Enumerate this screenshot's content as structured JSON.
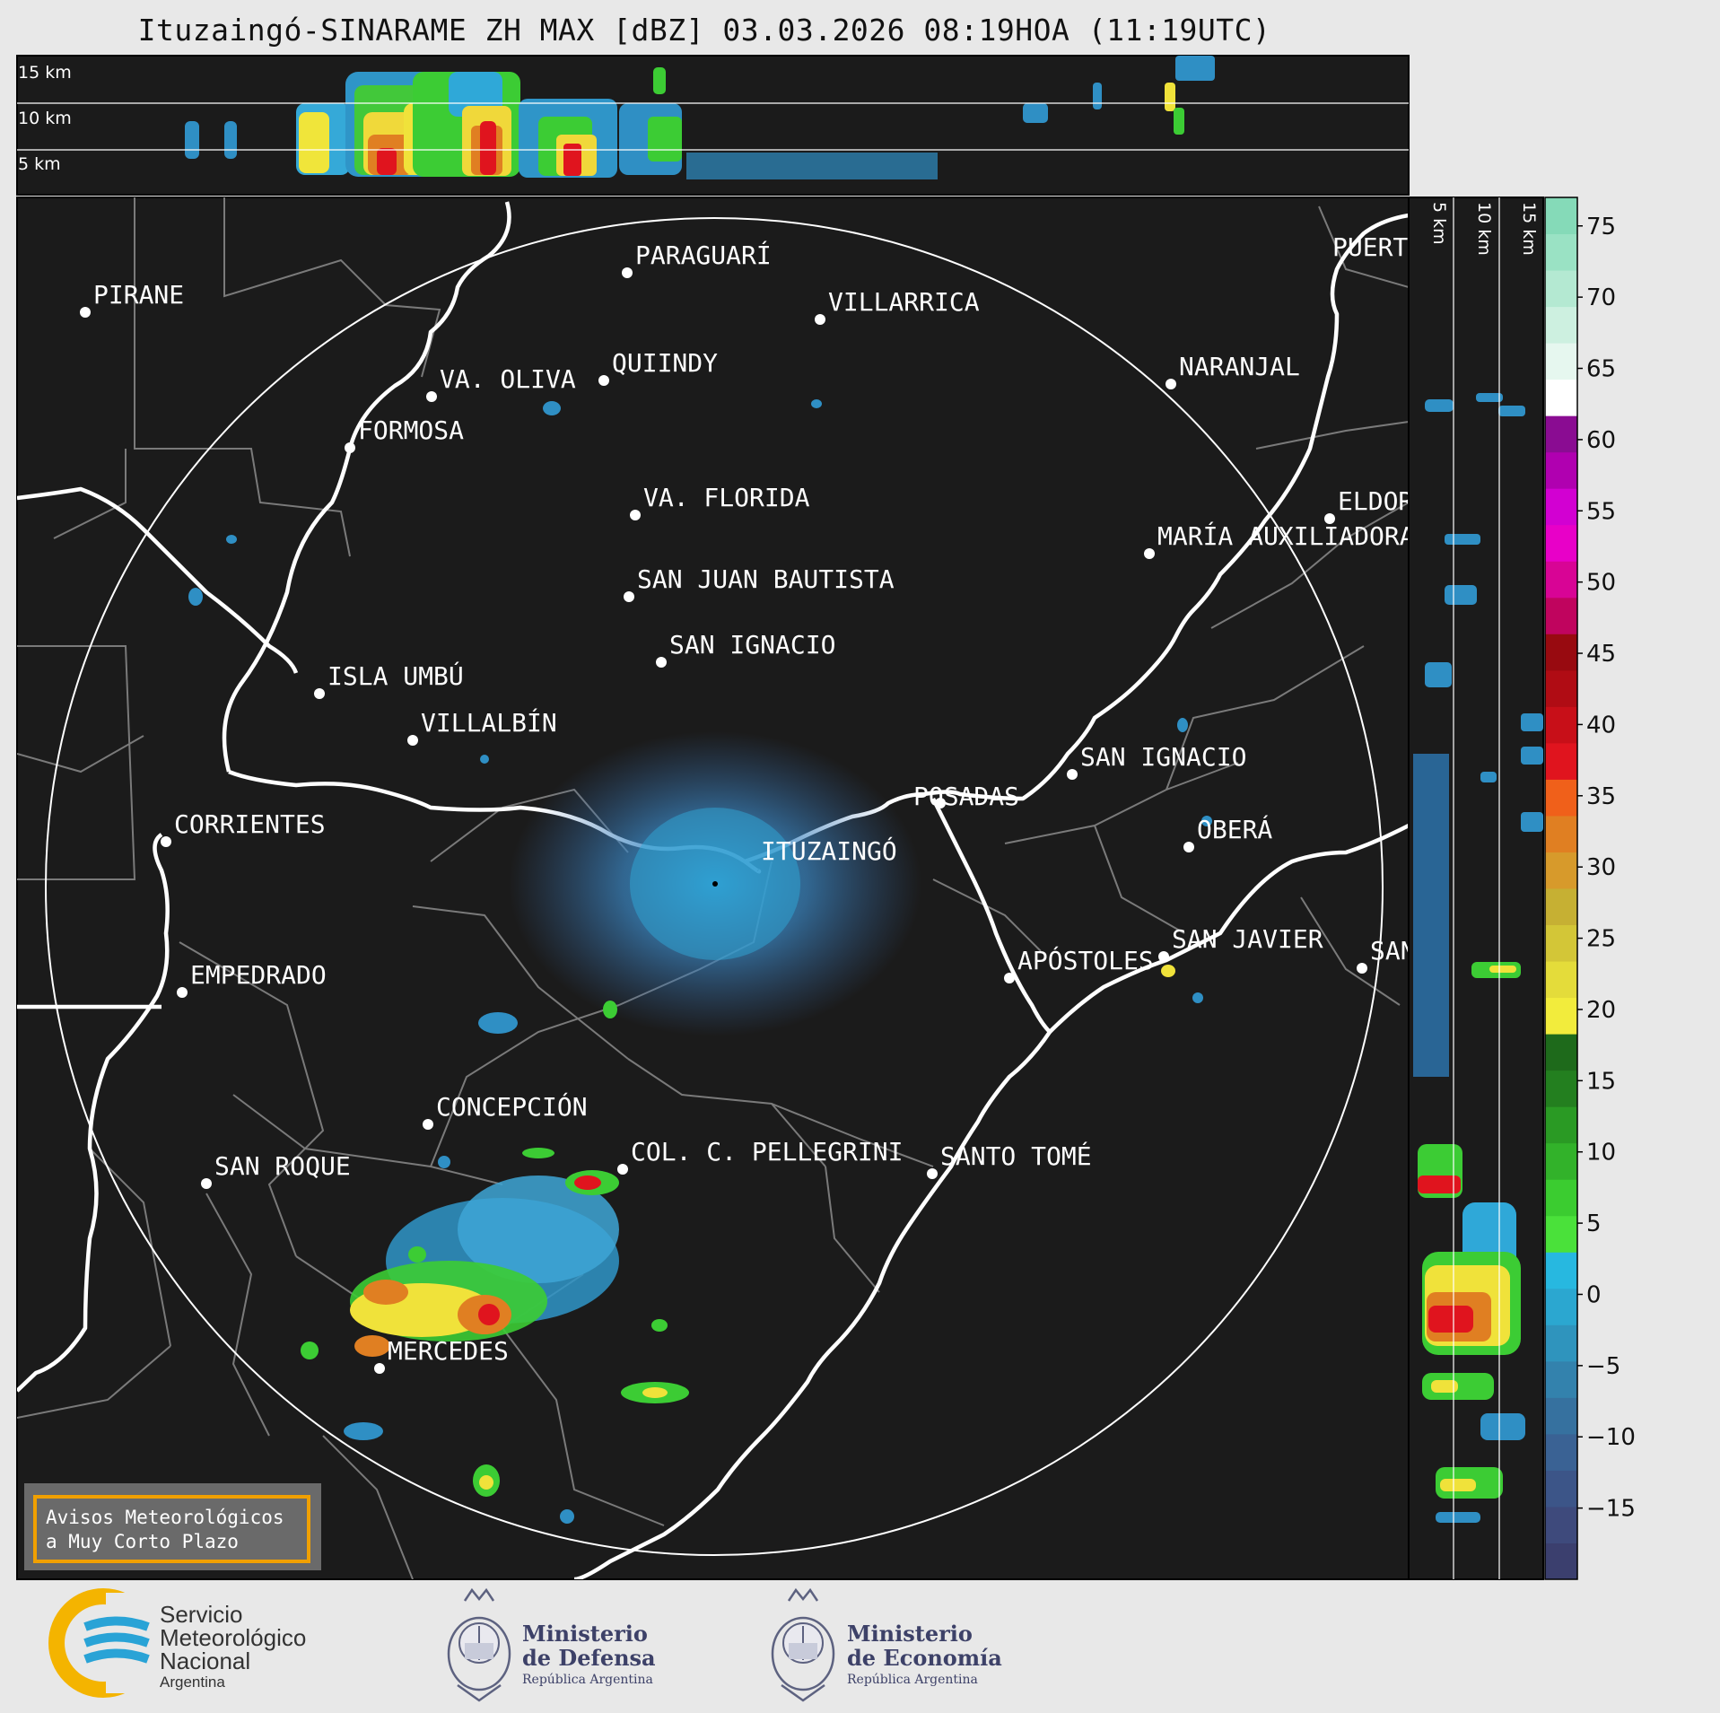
{
  "title": "Ituzaingó-SINARAME ZH MAX [dBZ] 03.03.2026 08:19HOA (11:19UTC)",
  "top_panel": {
    "height_labels": [
      "15 km",
      "10 km",
      "5 km"
    ]
  },
  "side_panel": {
    "height_labels": [
      "5 km",
      "10 km",
      "15 km"
    ]
  },
  "radar_site": "ITUZAINGÓ",
  "cities": [
    {
      "name": "PIRANE"
    },
    {
      "name": "PARAGUARÍ"
    },
    {
      "name": "VILLARRICA"
    },
    {
      "name": "VA. OLIVA"
    },
    {
      "name": "QUIINDY"
    },
    {
      "name": "NARANJAL"
    },
    {
      "name": "FORMOSA"
    },
    {
      "name": "VA. FLORIDA"
    },
    {
      "name": "ELDORADO"
    },
    {
      "name": "MARÍA AUXILIADORA"
    },
    {
      "name": "SAN JUAN BAUTISTA"
    },
    {
      "name": "SAN IGNACIO"
    },
    {
      "name": "ISLA UMBÚ"
    },
    {
      "name": "VILLALBÍN"
    },
    {
      "name": "SAN IGNACIO"
    },
    {
      "name": "POSADAS"
    },
    {
      "name": "CORRIENTES"
    },
    {
      "name": "OBERÁ"
    },
    {
      "name": "APÓSTOLES"
    },
    {
      "name": "SAN JAVIER"
    },
    {
      "name": "SAN"
    },
    {
      "name": "EMPEDRADO"
    },
    {
      "name": "CONCEPCIÓN"
    },
    {
      "name": "COL. C. PELLEGRINI"
    },
    {
      "name": "SANTO TOMÉ"
    },
    {
      "name": "SAN ROQUE"
    },
    {
      "name": "MERCEDES"
    },
    {
      "name": "PUERTO"
    }
  ],
  "colorbar": {
    "ticks": [
      "75",
      "70",
      "65",
      "60",
      "55",
      "50",
      "45",
      "40",
      "35",
      "30",
      "25",
      "20",
      "15",
      "10",
      "5",
      "0",
      "−5",
      "−10",
      "−15"
    ],
    "colors": [
      "#3b3f6e",
      "#3e4a7c",
      "#3c5588",
      "#3a6294",
      "#36719f",
      "#3382ad",
      "#2f94bd",
      "#2ba7d0",
      "#27b8e0",
      "#4ae13a",
      "#3bcc30",
      "#32b22a",
      "#2a9a24",
      "#237f1f",
      "#1e6a1b",
      "#f2ec3c",
      "#e4dc3a",
      "#d3c637",
      "#c6b033",
      "#d79a2b",
      "#e07f22",
      "#f0601a",
      "#e0141e",
      "#c80f18",
      "#b00c14",
      "#980a10",
      "#c0045e",
      "#d80495",
      "#e800c8",
      "#d200d2",
      "#b000b0",
      "#8a0c92",
      "#ffffff",
      "#e6f7ef",
      "#cdf0e0",
      "#b4e9d2",
      "#9ae2c4",
      "#85dab8"
    ]
  },
  "warning_box": {
    "line1": "Avisos Meteorológicos",
    "line2": "a Muy Corto Plazo"
  },
  "logos": {
    "smn": {
      "line1": "Servicio",
      "line2": "Meteorológico",
      "line3": "Nacional",
      "line4": "Argentina"
    },
    "defensa": {
      "line1": "Ministerio",
      "line2": "de Defensa",
      "line3": "República Argentina"
    },
    "economia": {
      "line1": "Ministerio",
      "line2": "de Economía",
      "line3": "República Argentina"
    }
  }
}
